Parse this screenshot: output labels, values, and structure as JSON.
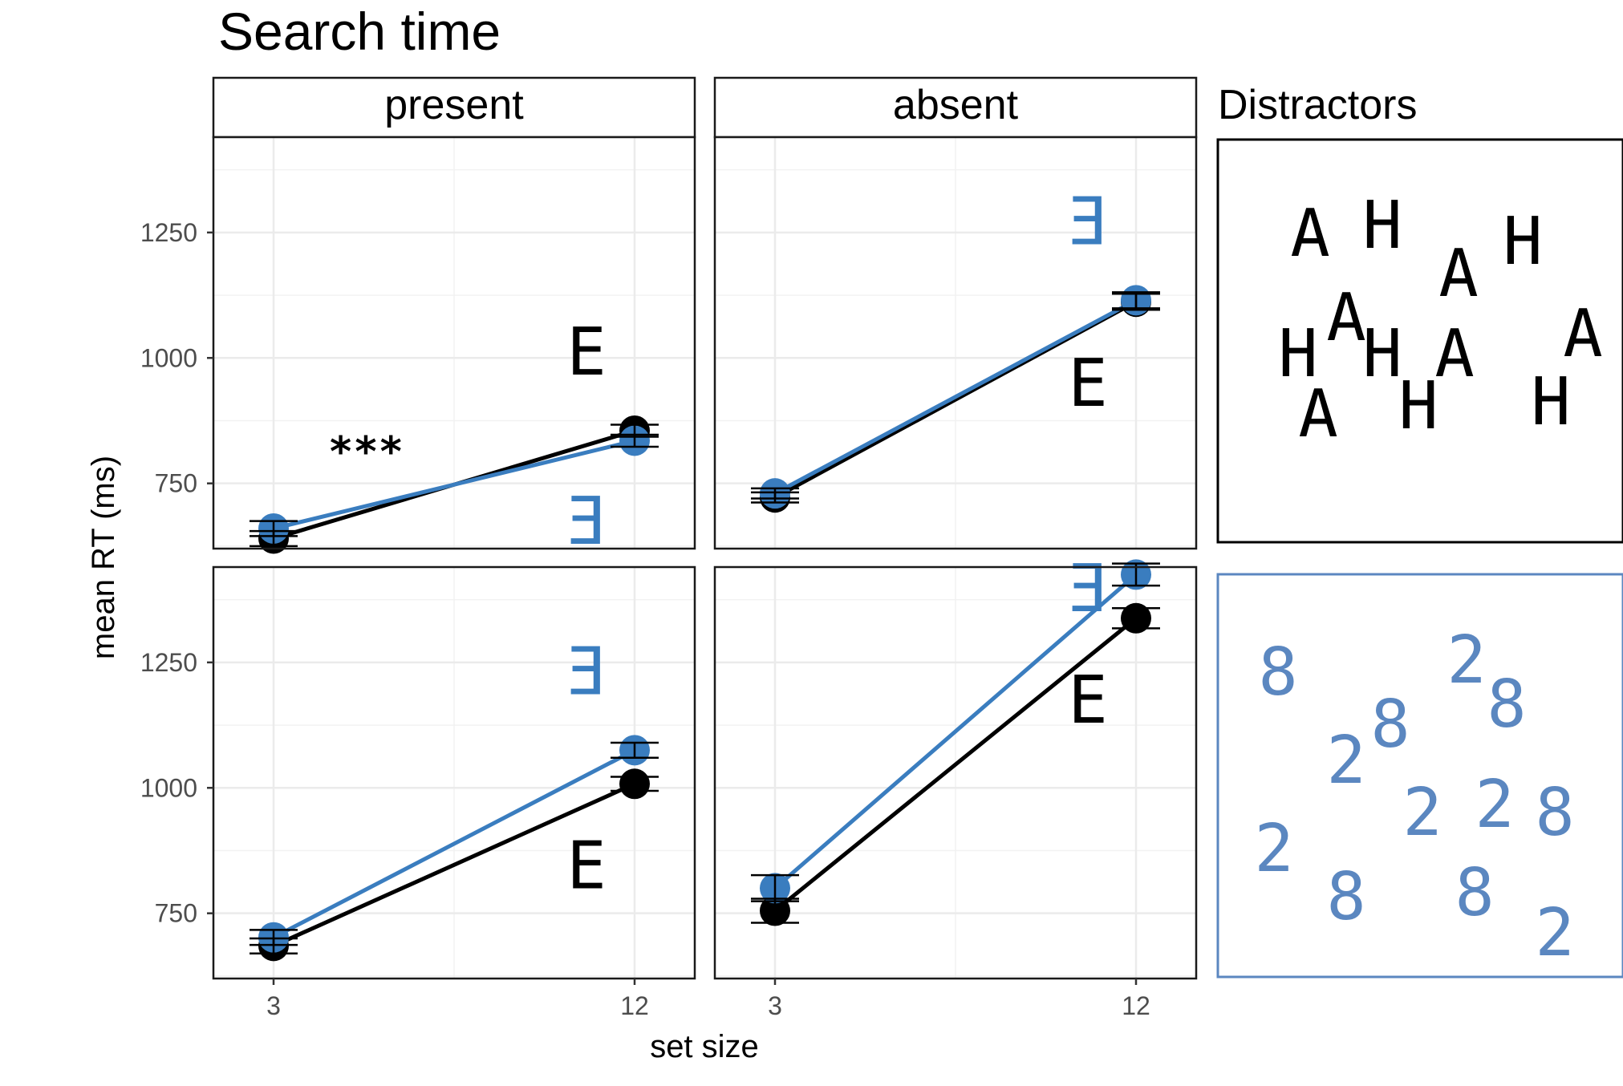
{
  "title": "Search time",
  "x_axis_title": "set size",
  "y_axis_title": "mean RT (ms)",
  "columns": [
    "present",
    "absent"
  ],
  "distractors_label": "Distractors",
  "colors": {
    "black": "#000000",
    "blue": "#3a7dbf",
    "blue_glyph": "#5b87c0",
    "grid": "#ebebeb"
  },
  "chart_data": {
    "type": "line",
    "x": [
      3,
      12
    ],
    "x_ticks": [
      "3",
      "12"
    ],
    "y_ticks": [
      "750",
      "1000",
      "1250"
    ],
    "ylim": [
      620,
      1440
    ],
    "grid": true,
    "panels": [
      {
        "row": 0,
        "column": "present",
        "annotation": "***",
        "series": [
          {
            "marker": "E",
            "color": "#000000",
            "values": [
              640,
              855
            ],
            "err": [
              15,
              12
            ]
          },
          {
            "marker": "Ǝ",
            "color": "#3a7dbf",
            "values": [
              660,
              835
            ],
            "err": [
              15,
              12
            ]
          }
        ]
      },
      {
        "row": 0,
        "column": "absent",
        "annotation": "",
        "series": [
          {
            "marker": "E",
            "color": "#000000",
            "values": [
              722,
              1112
            ],
            "err": [
              10,
              16
            ]
          },
          {
            "marker": "Ǝ",
            "color": "#3a7dbf",
            "values": [
              730,
              1115
            ],
            "err": [
              10,
              16
            ]
          }
        ]
      },
      {
        "row": 1,
        "column": "present",
        "annotation": "",
        "series": [
          {
            "marker": "E",
            "color": "#000000",
            "values": [
              685,
              1008
            ],
            "err": [
              15,
              14
            ]
          },
          {
            "marker": "Ǝ",
            "color": "#3a7dbf",
            "values": [
              702,
              1075
            ],
            "err": [
              15,
              15
            ]
          }
        ]
      },
      {
        "row": 1,
        "column": "absent",
        "annotation": "",
        "series": [
          {
            "marker": "E",
            "color": "#000000",
            "values": [
              755,
              1338
            ],
            "err": [
              24,
              20
            ]
          },
          {
            "marker": "Ǝ",
            "color": "#3a7dbf",
            "values": [
              800,
              1425
            ],
            "err": [
              26,
              22
            ]
          }
        ]
      }
    ]
  },
  "distractor_panels": [
    {
      "color": "#000000",
      "glyphs": [
        "A",
        "H"
      ]
    },
    {
      "color": "#5b87c0",
      "glyphs": [
        "8",
        "2"
      ]
    }
  ]
}
